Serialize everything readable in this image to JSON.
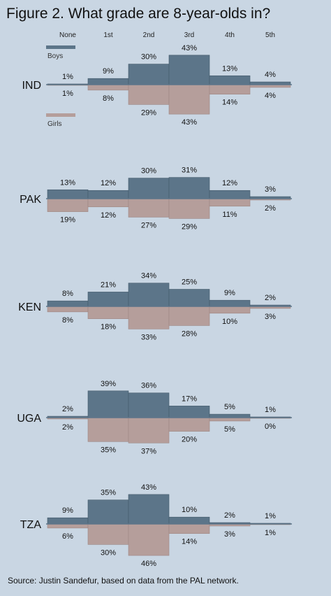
{
  "title": "Figure 2. What grade are 8-year-olds in?",
  "source": "Source: Justin Sandefur, based on data from the PAL network.",
  "colors": {
    "boys": "#5c7589",
    "girls": "#b59e9b",
    "background": "#c9d6e3"
  },
  "chart_data": {
    "type": "bar",
    "title": "Figure 2. What grade are 8-year-olds in?",
    "orientation": "mirrored (boys above baseline, girls below)",
    "categories": [
      "None",
      "1st",
      "2nd",
      "3rd",
      "4th",
      "5th"
    ],
    "legend": [
      "Boys",
      "Girls"
    ],
    "unit": "%",
    "panels": [
      {
        "country": "IND",
        "boys": [
          1,
          9,
          30,
          43,
          13,
          4
        ],
        "girls": [
          1,
          8,
          29,
          43,
          14,
          4
        ]
      },
      {
        "country": "PAK",
        "boys": [
          13,
          12,
          30,
          31,
          12,
          3
        ],
        "girls": [
          19,
          12,
          27,
          29,
          11,
          2
        ]
      },
      {
        "country": "KEN",
        "boys": [
          8,
          21,
          34,
          25,
          9,
          2
        ],
        "girls": [
          8,
          18,
          33,
          28,
          10,
          3
        ]
      },
      {
        "country": "UGA",
        "boys": [
          2,
          39,
          36,
          17,
          5,
          1
        ],
        "girls": [
          2,
          35,
          37,
          20,
          5,
          0
        ]
      },
      {
        "country": "TZA",
        "boys": [
          9,
          35,
          43,
          10,
          2,
          1
        ],
        "girls": [
          6,
          30,
          46,
          14,
          3,
          1
        ]
      }
    ]
  }
}
